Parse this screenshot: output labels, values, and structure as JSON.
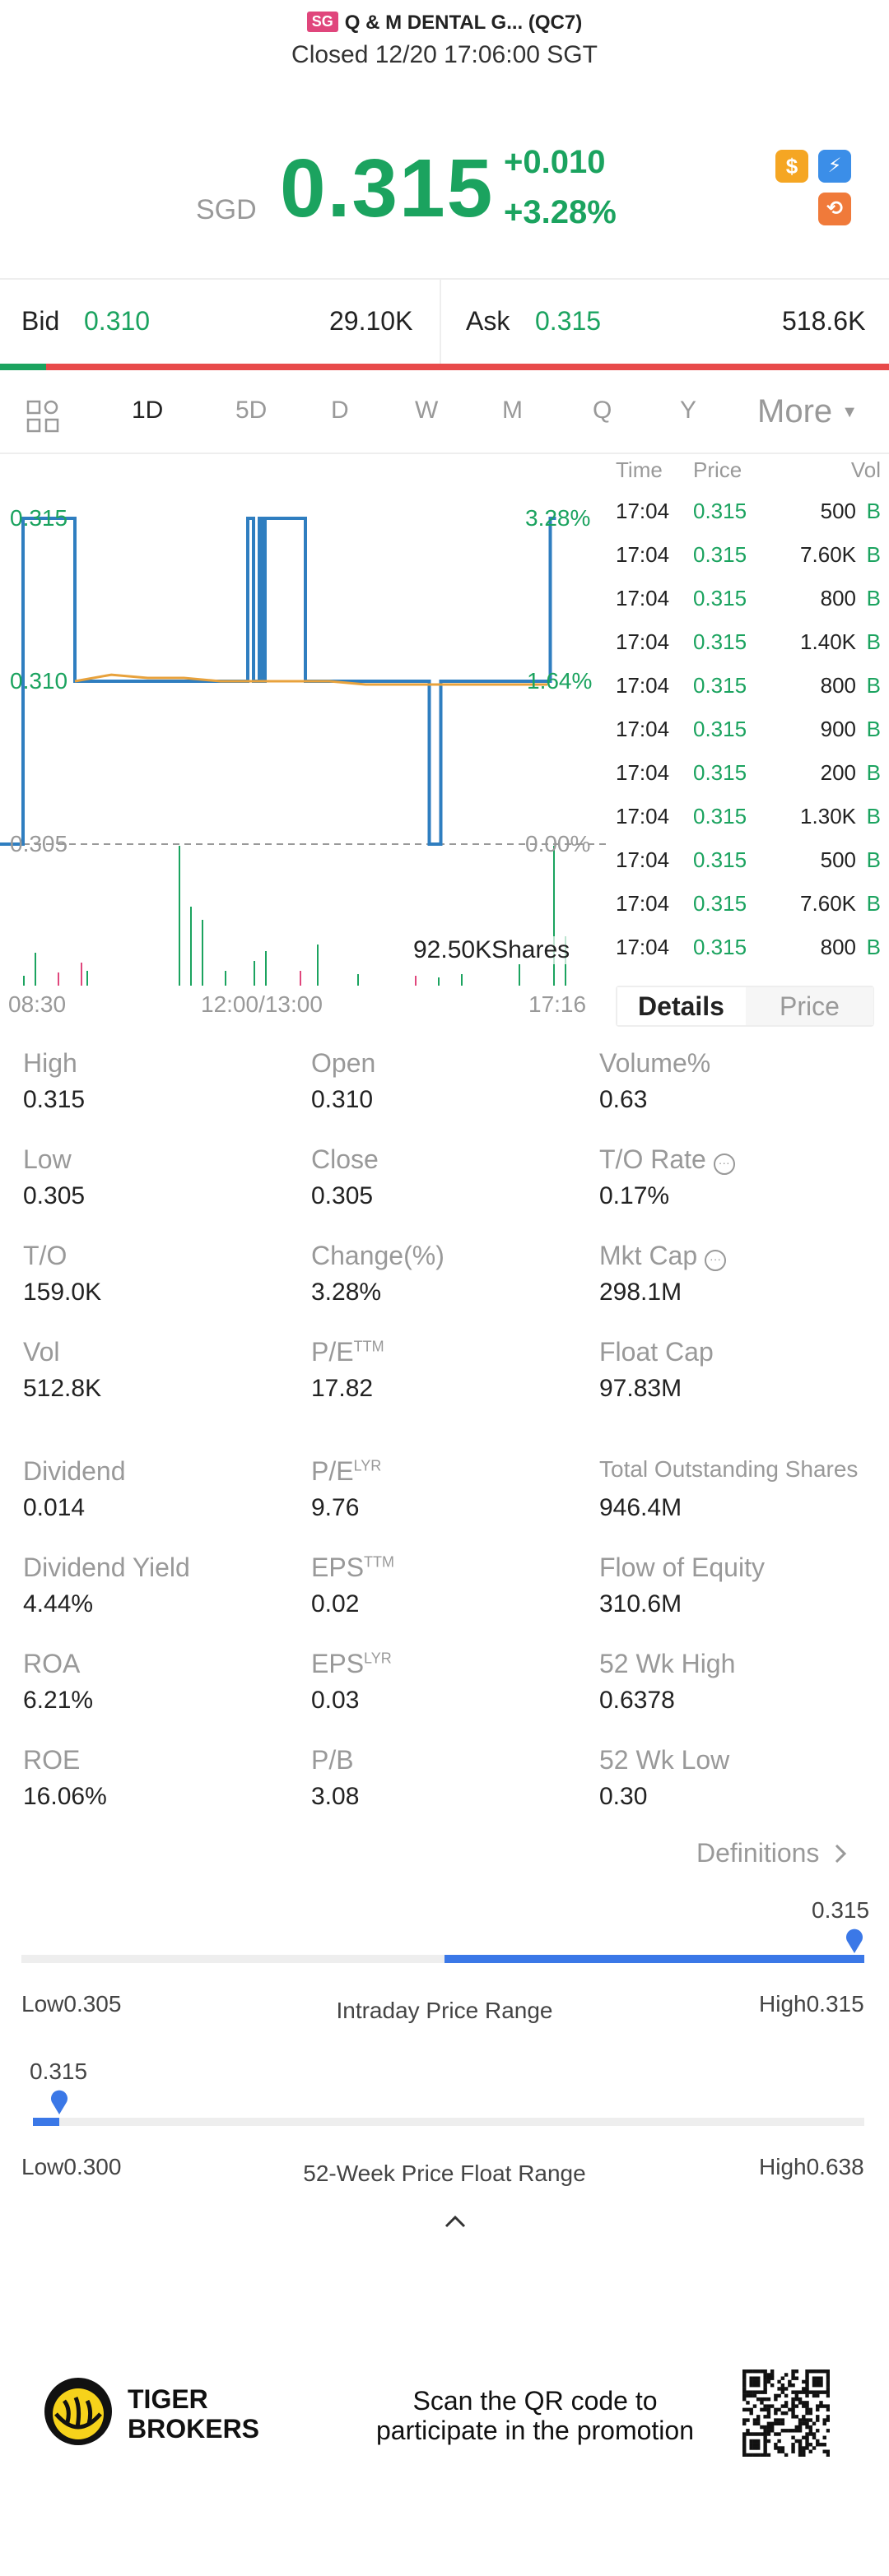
{
  "header": {
    "market_badge": "SG",
    "title": "Q & M DENTAL G... (QC7)",
    "status": "Closed 12/20 17:06:00 SGT"
  },
  "quote": {
    "currency": "SGD",
    "last": "0.315",
    "change": "+0.010",
    "change_pct": "+3.28%"
  },
  "bid_ask": {
    "bid_label": "Bid",
    "bid_price": "0.310",
    "bid_size": "29.10K",
    "ask_label": "Ask",
    "ask_price": "0.315",
    "ask_size": "518.6K"
  },
  "tabs": [
    "1D",
    "5D",
    "D",
    "W",
    "M",
    "Q",
    "Y"
  ],
  "tab_more": "More",
  "active_tab": "1D",
  "chart_data": {
    "type": "line",
    "y_labels_left": [
      "0.315",
      "0.310",
      "0.305"
    ],
    "y_labels_right": [
      "3.28%",
      "1.64%",
      "0.00%"
    ],
    "x_labels": [
      "08:30",
      "12:00/13:00",
      "17:16"
    ],
    "volume_label": "92.50KShares",
    "price_series": [
      0.305,
      0.315,
      0.315,
      0.31,
      0.31,
      0.31,
      0.31,
      0.315,
      0.31,
      0.315,
      0.315,
      0.31,
      0.31,
      0.31,
      0.31,
      0.305,
      0.31,
      0.31,
      0.31,
      0.315
    ],
    "avg_series": [
      0.31,
      0.3102,
      0.3101,
      0.3101,
      0.31,
      0.31,
      0.31,
      0.31,
      0.3099,
      0.3099,
      0.3099,
      0.3099,
      0.3099,
      0.3099
    ],
    "ylim": [
      0.305,
      0.315
    ],
    "colors": {
      "price": "#2f7ec0",
      "avg": "#e8a23c",
      "up": "#1ba35f",
      "down": "#e0467c"
    }
  },
  "trades": {
    "headers": [
      "Time",
      "Price",
      "Vol"
    ],
    "rows": [
      {
        "time": "17:04",
        "price": "0.315",
        "vol": "500",
        "side": "B"
      },
      {
        "time": "17:04",
        "price": "0.315",
        "vol": "7.60K",
        "side": "B"
      },
      {
        "time": "17:04",
        "price": "0.315",
        "vol": "800",
        "side": "B"
      },
      {
        "time": "17:04",
        "price": "0.315",
        "vol": "1.40K",
        "side": "B"
      },
      {
        "time": "17:04",
        "price": "0.315",
        "vol": "800",
        "side": "B"
      },
      {
        "time": "17:04",
        "price": "0.315",
        "vol": "900",
        "side": "B"
      },
      {
        "time": "17:04",
        "price": "0.315",
        "vol": "200",
        "side": "B"
      },
      {
        "time": "17:04",
        "price": "0.315",
        "vol": "1.30K",
        "side": "B"
      },
      {
        "time": "17:04",
        "price": "0.315",
        "vol": "500",
        "side": "B"
      },
      {
        "time": "17:04",
        "price": "0.315",
        "vol": "7.60K",
        "side": "B"
      },
      {
        "time": "17:04",
        "price": "0.315",
        "vol": "800",
        "side": "B"
      }
    ]
  },
  "detail_tabs": {
    "details": "Details",
    "price": "Price"
  },
  "stats": {
    "high": {
      "label": "High",
      "value": "0.315"
    },
    "open": {
      "label": "Open",
      "value": "0.310"
    },
    "volume_pct": {
      "label": "Volume%",
      "value": "0.63"
    },
    "low": {
      "label": "Low",
      "value": "0.305"
    },
    "close": {
      "label": "Close",
      "value": "0.305"
    },
    "to_rate": {
      "label": "T/O Rate",
      "value": "0.17%"
    },
    "to": {
      "label": "T/O",
      "value": "159.0K"
    },
    "change_pct": {
      "label": "Change(%)",
      "value": "3.28%"
    },
    "mkt_cap": {
      "label": "Mkt Cap",
      "value": "298.1M"
    },
    "vol": {
      "label": "Vol",
      "value": "512.8K"
    },
    "pe_ttm": {
      "label": "P/E",
      "sup": "TTM",
      "value": "17.82"
    },
    "float_cap": {
      "label": "Float Cap",
      "value": "97.83M"
    },
    "dividend": {
      "label": "Dividend",
      "value": "0.014"
    },
    "pe_lyr": {
      "label": "P/E",
      "sup": "LYR",
      "value": "9.76"
    },
    "total_shares": {
      "label": "Total Outstanding Shares",
      "value": "946.4M"
    },
    "div_yield": {
      "label": "Dividend Yield",
      "value": "4.44%"
    },
    "eps_ttm": {
      "label": "EPS",
      "sup": "TTM",
      "value": "0.02"
    },
    "flow_equity": {
      "label": "Flow of Equity",
      "value": "310.6M"
    },
    "roa": {
      "label": "ROA",
      "value": "6.21%"
    },
    "eps_lyr": {
      "label": "EPS",
      "sup": "LYR",
      "value": "0.03"
    },
    "wk52_high": {
      "label": "52 Wk High",
      "value": "0.6378"
    },
    "roe": {
      "label": "ROE",
      "value": "16.06%"
    },
    "pb": {
      "label": "P/B",
      "value": "3.08"
    },
    "wk52_low": {
      "label": "52 Wk Low",
      "value": "0.30"
    }
  },
  "definitions": "Definitions",
  "intraday_range": {
    "current": "0.315",
    "low": "Low0.305",
    "high": "High0.315",
    "caption": "Intraday Price Range",
    "fill_start": 0.5,
    "marker": 1.0
  },
  "week52_range": {
    "current": "0.315",
    "low": "Low0.300",
    "high": "High0.638",
    "caption": "52-Week Price Float Range",
    "marker": 0.03
  },
  "footer": {
    "brand_line1": "TIGER",
    "brand_line2": "BROKERS",
    "promo_line1": "Scan the QR code to",
    "promo_line2": "participate in the promotion"
  },
  "colors": {
    "green": "#1ba35f",
    "red": "#e0467c",
    "blue": "#3b78e7",
    "bid_bar_green": "#1ba35f",
    "ask_bar_red": "#e84a4a"
  }
}
